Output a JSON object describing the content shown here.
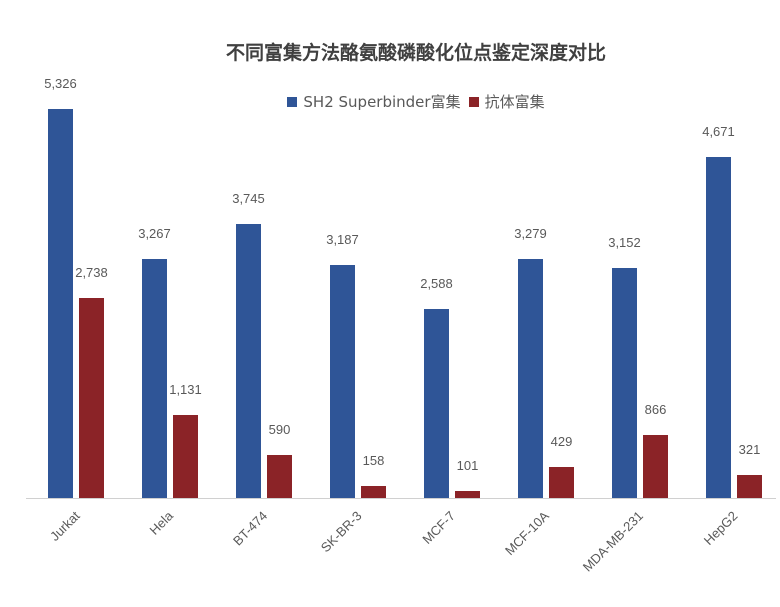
{
  "chart_data": {
    "type": "bar",
    "title": "不同富集方法酪氨酸磷酸化位点鉴定深度对比",
    "xlabel": "",
    "ylabel": "",
    "categories": [
      "Jurkat",
      "Hela",
      "BT-474",
      "SK-BR-3",
      "MCF-7",
      "MCF-10A",
      "MDA-MB-231",
      "HepG2"
    ],
    "series": [
      {
        "name": "SH2 Superbinder富集",
        "color": "#2F5597",
        "values": [
          5326,
          3267,
          3745,
          3187,
          2588,
          3279,
          3152,
          4671
        ],
        "labels": [
          "5,326",
          "3,267",
          "3,745",
          "3,187",
          "2,588",
          "3,279",
          "3,152",
          "4,671"
        ]
      },
      {
        "name": "抗体富集",
        "color": "#8B2327",
        "values": [
          2738,
          1131,
          590,
          158,
          101,
          429,
          866,
          321
        ],
        "labels": [
          "2,738",
          "1,131",
          "590",
          "158",
          "101",
          "429",
          "866",
          "321"
        ]
      }
    ],
    "ylim": [
      0,
      6000
    ],
    "grid": false,
    "legend_position": "top",
    "data_labels": true
  }
}
